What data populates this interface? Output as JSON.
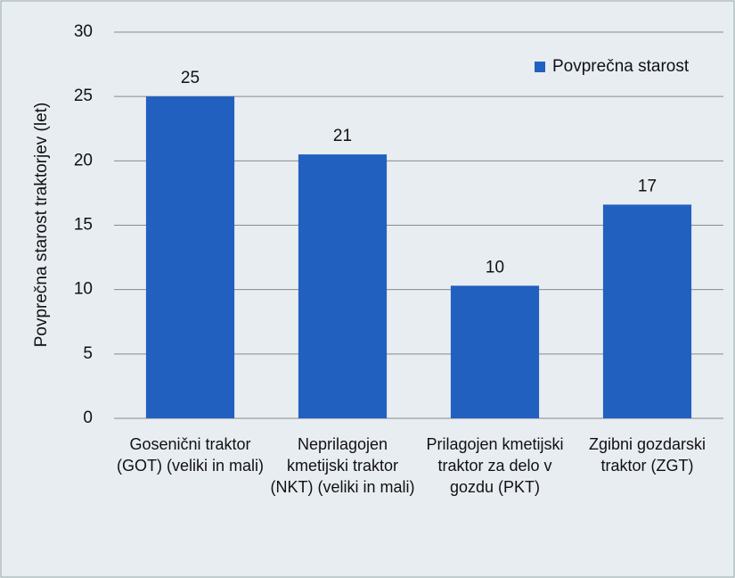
{
  "chart_data": {
    "type": "bar",
    "y_label": "Povprečna starost traktorjev (let)",
    "categories": [
      "Gosenični traktor (GOT) (veliki in mali)",
      "Neprilagojen kmetijski traktor (NKT) (veliki in mali)",
      "Prilagojen kmetijski traktor za delo v gozdu (PKT)",
      "Zgibni gozdarski traktor (ZGT)"
    ],
    "series": [
      {
        "name": "Povprečna starost",
        "color": "#2260bf",
        "values": [
          25,
          20.5,
          10.3,
          16.6
        ],
        "value_labels": [
          "25",
          "21",
          "10",
          "17"
        ]
      }
    ],
    "ylim": [
      0,
      30
    ],
    "yticks": [
      0,
      5,
      10,
      15,
      20,
      25,
      30
    ],
    "grid": true,
    "legend": "top-right"
  }
}
